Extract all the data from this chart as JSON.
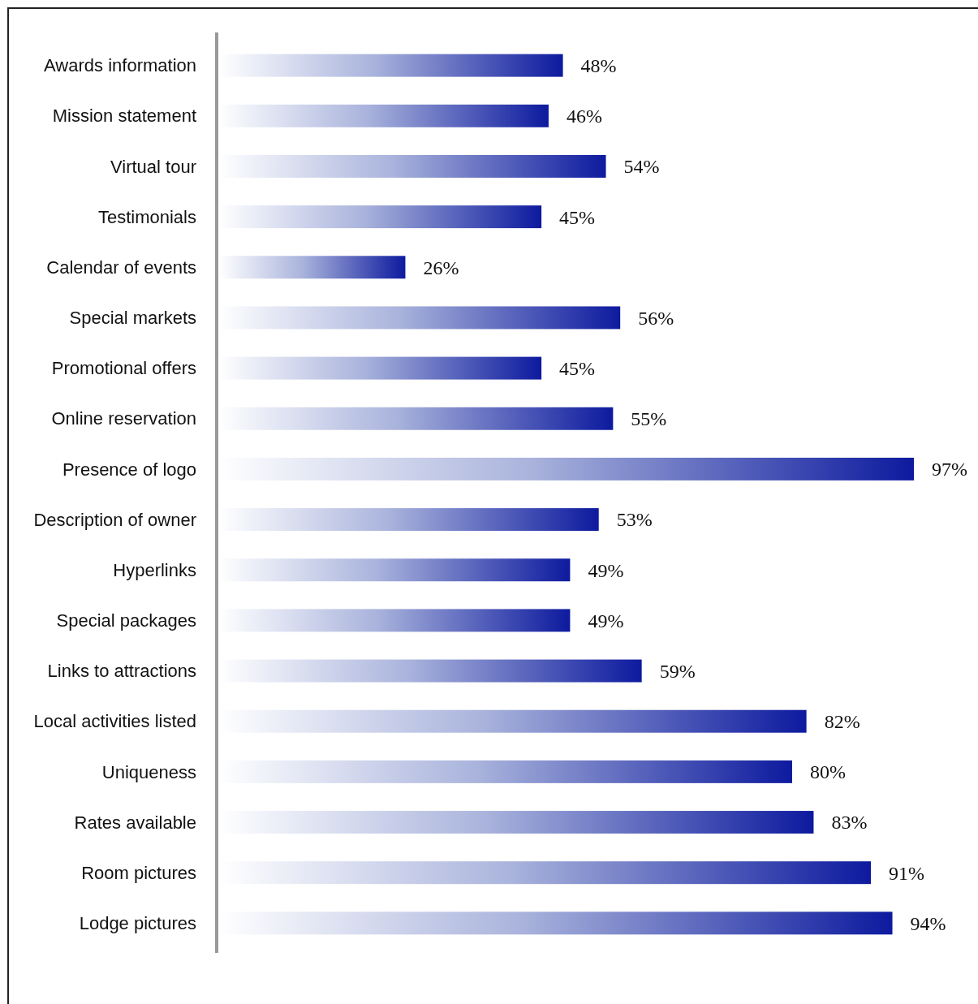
{
  "chart_data": {
    "type": "bar",
    "orientation": "horizontal",
    "categories": [
      "Awards information",
      "Mission statement",
      "Virtual tour",
      "Testimonials",
      "Calendar of events",
      "Special markets",
      "Promotional offers",
      "Online reservation",
      "Presence of logo",
      "Description of owner",
      "Hyperlinks",
      "Special packages",
      "Links to attractions",
      "Local activities listed",
      "Uniqueness",
      "Rates available",
      "Room pictures",
      "Lodge pictures"
    ],
    "values": [
      48,
      46,
      54,
      45,
      26,
      56,
      45,
      55,
      97,
      53,
      49,
      49,
      59,
      82,
      80,
      83,
      91,
      94
    ],
    "value_labels": [
      "48%",
      "46%",
      "54%",
      "45%",
      "26%",
      "56%",
      "45%",
      "55%",
      "97%",
      "53%",
      "49%",
      "49%",
      "59%",
      "82%",
      "80%",
      "83%",
      "91%",
      "94%"
    ],
    "color": "#0d1a9e"
  }
}
